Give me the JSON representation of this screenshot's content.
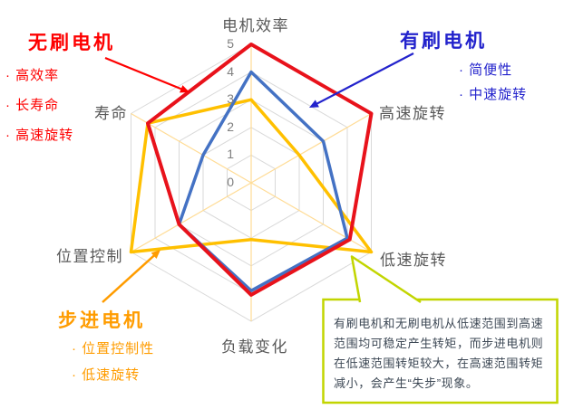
{
  "chart_data": {
    "type": "radar",
    "categories": [
      "电机效率",
      "高速旋转",
      "低速旋转",
      "负载变化",
      "位置控制",
      "寿命"
    ],
    "axis_range": [
      0,
      5
    ],
    "tick_labels": [
      "0",
      "1",
      "2",
      "3",
      "4",
      "5"
    ],
    "grid": {
      "rings": 5,
      "ring_color": "#D9D9D9",
      "spoke_color": "#FFDC96"
    },
    "legend_position": "none",
    "series": [
      {
        "name": "步进电机",
        "color": "#FFC000",
        "values": [
          3,
          2,
          5,
          2.05,
          5,
          4.3
        ]
      },
      {
        "name": "有刷电机",
        "color": "#4472C4",
        "values": [
          4,
          3,
          4,
          3.9,
          3,
          2
        ]
      },
      {
        "name": "无刷电机",
        "color": "#E8121B",
        "values": [
          5,
          5,
          4.1,
          4.05,
          3,
          4.3
        ]
      }
    ]
  },
  "annotations": {
    "brushless": {
      "title": "无刷电机",
      "color": "#FE0000",
      "bullets": [
        "· 高效率",
        "· 长寿命",
        "· 高速旋转"
      ]
    },
    "brushed": {
      "title": "有刷电机",
      "color": "#2222CC",
      "bullets": [
        "· 简便性",
        "· 中速旋转"
      ]
    },
    "stepper": {
      "title": "步进电机",
      "color": "#FF9C00",
      "bullets": [
        "· 位置控制性",
        "· 低速旋转"
      ]
    },
    "callout": {
      "border_color": "#C2D500",
      "text_color": "#3D4855",
      "lines": [
        "有刷电机和无刷电机从低速范围到高速",
        "范围均可稳定产生转矩，而步进电机则",
        "在低速范围转矩较大，在高速范围转矩",
        "减小，会产生“失步”现象。"
      ]
    }
  }
}
